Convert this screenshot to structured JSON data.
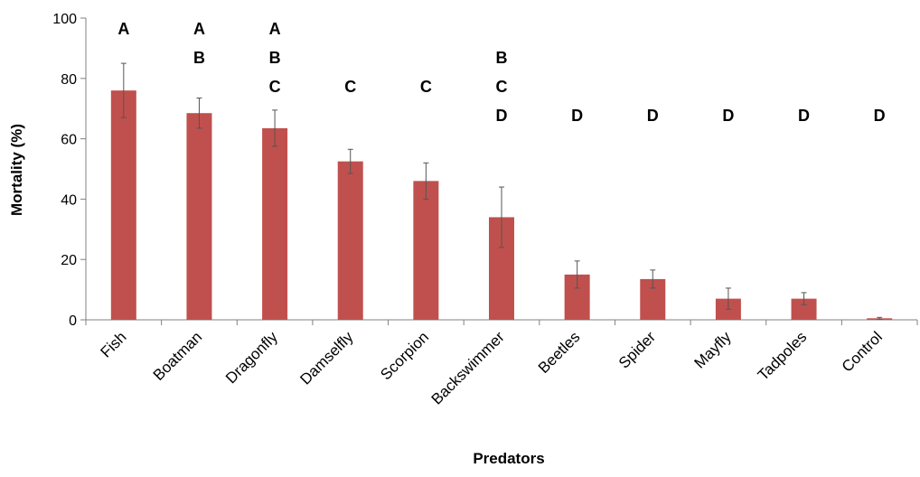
{
  "chart_data": {
    "type": "bar",
    "title": "",
    "xlabel": "Predators",
    "ylabel": "Mortality (%)",
    "ylim": [
      0,
      100
    ],
    "yticks": [
      0,
      20,
      40,
      60,
      80,
      100
    ],
    "grid": false,
    "legend": "none",
    "bar_color": "#c0504d",
    "errorbar_color": "#555555",
    "categories": [
      "Fish",
      "Boatman",
      "Dragonfly",
      "Damselfly",
      "Scorpion",
      "Backswimmer",
      "Beetles",
      "Spider",
      "Mayfly",
      "Tadpoles",
      "Control"
    ],
    "values": [
      76,
      68.5,
      63.5,
      52.5,
      46,
      34,
      15,
      13.5,
      7,
      7,
      0.5
    ],
    "errors": [
      9,
      5,
      6,
      4,
      6,
      10,
      4.5,
      3,
      3.5,
      2,
      0.3
    ],
    "significance_groups": [
      [
        "A"
      ],
      [
        "A",
        "B"
      ],
      [
        "A",
        "B",
        "C"
      ],
      [
        "C"
      ],
      [
        "C"
      ],
      [
        "B",
        "C",
        "D"
      ],
      [
        "D"
      ],
      [
        "D"
      ],
      [
        "D"
      ],
      [
        "D"
      ],
      [
        "D"
      ]
    ]
  }
}
